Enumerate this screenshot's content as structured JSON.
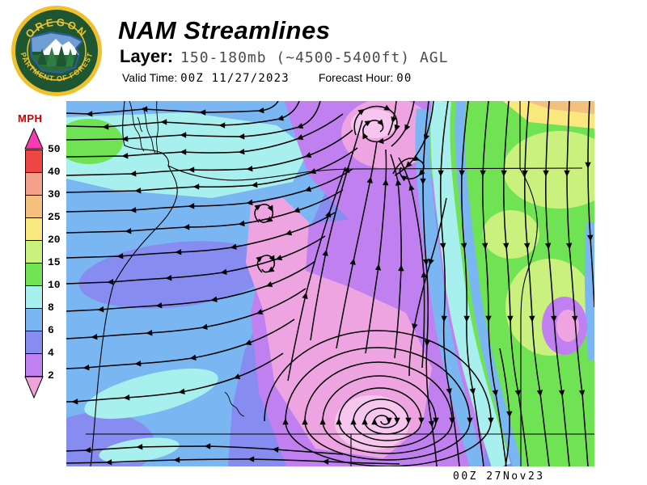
{
  "header": {
    "title": "NAM Streamlines",
    "layer_label": "Layer:",
    "layer_value": "150-180mb (~4500-5400ft) AGL",
    "valid_time_label": "Valid Time:",
    "valid_time_value": "00Z 11/27/2023",
    "forecast_hour_label": "Forecast Hour:",
    "forecast_hour_value": "00"
  },
  "logo": {
    "top_text": "OREGON",
    "bottom_text": "DEPARTMENT OF FORESTRY"
  },
  "legend": {
    "unit": "MPH",
    "unit_color": "#cc0000",
    "tick_labels": [
      "50",
      "40",
      "30",
      "25",
      "20",
      "15",
      "10",
      "8",
      "6",
      "4",
      "2"
    ],
    "band_colors": [
      "#ee4545",
      "#f5a28c",
      "#f3c07d",
      "#f9e87e",
      "#caf17d",
      "#70e355",
      "#a8f0ee",
      "#79b6f2",
      "#878cf0",
      "#c180f0"
    ],
    "arrow_top_color": "#f73bb0",
    "arrow_bottom_color": "#f0a3da"
  },
  "map": {
    "timestamp": "00Z 27Nov23",
    "speed_colors": {
      "under_2_mph": "#efa4e2",
      "mph_2_4": "#c180f0",
      "mph_4_6": "#878cf0",
      "mph_6_8": "#79b6f2",
      "mph_8_10": "#a8f0ee",
      "mph_10_15": "#70e355",
      "mph_15_20": "#caf17d",
      "mph_20_25": "#f9e87e",
      "mph_25_30": "#f3c07d"
    }
  }
}
